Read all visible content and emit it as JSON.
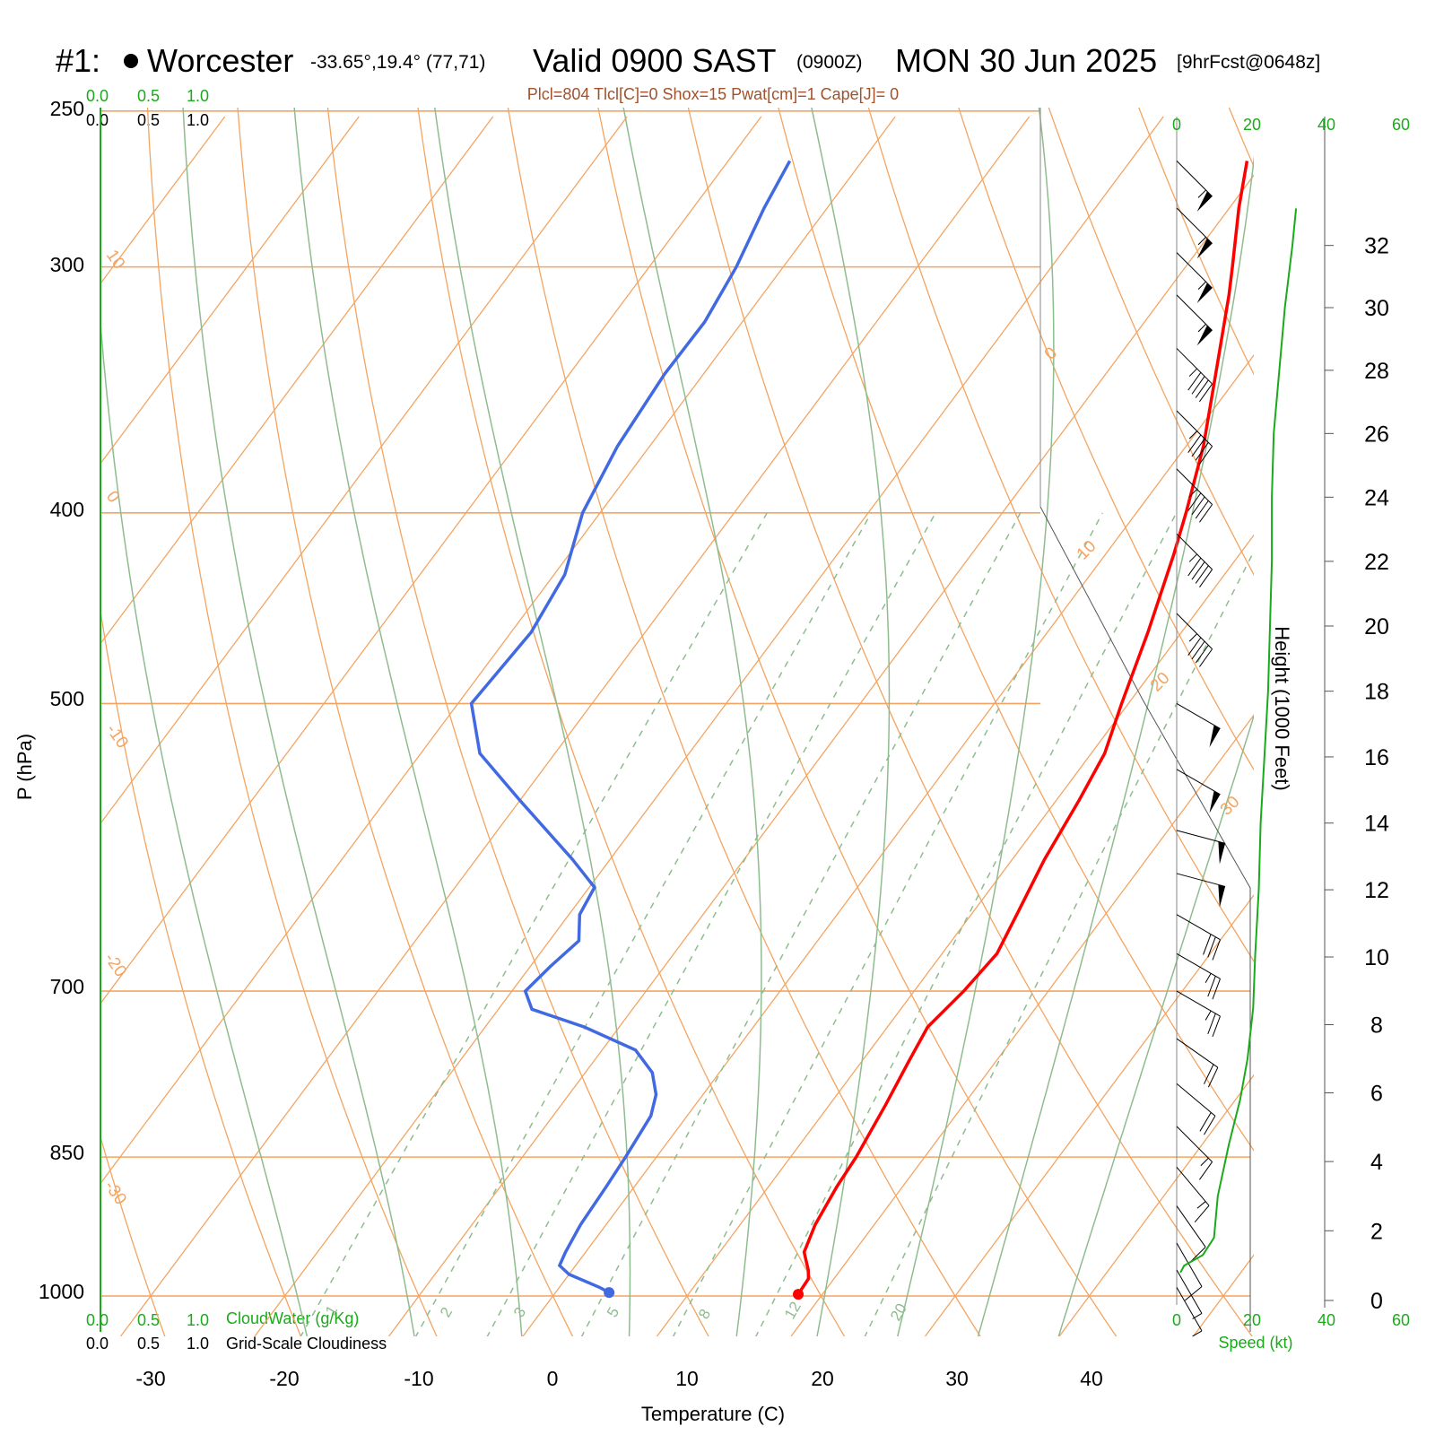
{
  "header": {
    "station_id": "#1:",
    "station_name": "Worcester",
    "coords": "-33.65°,19.4° (77,71)",
    "valid": "Valid 0900 SAST",
    "zulu": "(0900Z)",
    "date": "MON 30 Jun 2025",
    "forecast": "[9hrFcst@0648z]",
    "indices": "Plcl=804 Tlcl[C]=0 Shox=15 Pwat[cm]=1 Cape[J]= 0"
  },
  "axes": {
    "ylabel": "P (hPa)",
    "xlabel": "Temperature (C)",
    "height_label": "Height (1000 Feet)",
    "speed_label": "Speed (kt)",
    "cloudwater_label": "CloudWater (g/Kg)",
    "cloudiness_label": "Grid-Scale Cloudiness",
    "cloud_ticks": [
      "0.0",
      "0.5",
      "1.0"
    ]
  },
  "colors": {
    "temperature": "#ff0000",
    "dewpoint": "#4169e1",
    "isotherm": "#f4a460",
    "dry_adiabat": "#f4a460",
    "moist_adiabat": "#8fbc8f",
    "mixing_ratio": "#8fbc8f",
    "wind_speed": "#1aaa1a"
  },
  "chart_data": {
    "type": "line",
    "title": "Skew-T log-P sounding",
    "x_ticks": [
      "-30",
      "-20",
      "-10",
      "0",
      "10",
      "20",
      "30",
      "40"
    ],
    "pressure_ticks": [
      "250",
      "300",
      "400",
      "500",
      "700",
      "850",
      "1000"
    ],
    "ylim_hpa": [
      1000,
      250
    ],
    "height_ticks_kft": [
      "0",
      "2",
      "4",
      "6",
      "8",
      "10",
      "12",
      "14",
      "16",
      "18",
      "20",
      "22",
      "24",
      "26",
      "28",
      "30",
      "32"
    ],
    "speed_ticks_kt": [
      "0",
      "20",
      "40",
      "60"
    ],
    "isotherm_labels": [
      "10",
      "0",
      "-10",
      "-20",
      "-30",
      "0",
      "10",
      "20",
      "30"
    ],
    "mixing_ratio_labels": [
      "1",
      "2",
      "3",
      "5",
      "8",
      "12",
      "20"
    ],
    "series": [
      {
        "name": "Temperature",
        "points": [
          [
            998,
            18.2
          ],
          [
            980,
            18.1
          ],
          [
            970,
            17.6
          ],
          [
            950,
            16.3
          ],
          [
            920,
            15.6
          ],
          [
            880,
            15.1
          ],
          [
            850,
            14.9
          ],
          [
            800,
            14.2
          ],
          [
            760,
            13.5
          ],
          [
            730,
            13.0
          ],
          [
            700,
            13.7
          ],
          [
            670,
            14.1
          ],
          [
            640,
            13.4
          ],
          [
            600,
            12.4
          ],
          [
            560,
            11.7
          ],
          [
            530,
            11.0
          ],
          [
            500,
            9.5
          ],
          [
            460,
            7.5
          ],
          [
            420,
            5.1
          ],
          [
            400,
            3.7
          ],
          [
            370,
            1.3
          ],
          [
            340,
            -1.8
          ],
          [
            310,
            -5.2
          ],
          [
            300,
            -6.5
          ],
          [
            280,
            -9.3
          ],
          [
            265,
            -11.3
          ]
        ]
      },
      {
        "name": "Dewpoint",
        "points": [
          [
            996,
            4.0
          ],
          [
            990,
            3.0
          ],
          [
            975,
            0.0
          ],
          [
            965,
            -1.2
          ],
          [
            950,
            -1.5
          ],
          [
            920,
            -1.9
          ],
          [
            880,
            -2.1
          ],
          [
            850,
            -2.3
          ],
          [
            810,
            -2.7
          ],
          [
            790,
            -3.5
          ],
          [
            770,
            -5.0
          ],
          [
            750,
            -7.5
          ],
          [
            730,
            -12.6
          ],
          [
            715,
            -17.5
          ],
          [
            700,
            -19.0
          ],
          [
            680,
            -18.5
          ],
          [
            660,
            -17.8
          ],
          [
            640,
            -19.2
          ],
          [
            620,
            -19.6
          ],
          [
            600,
            -22.8
          ],
          [
            560,
            -30.0
          ],
          [
            530,
            -35.6
          ],
          [
            500,
            -39.0
          ],
          [
            460,
            -38.5
          ],
          [
            430,
            -39.2
          ],
          [
            400,
            -41.3
          ],
          [
            370,
            -42.4
          ],
          [
            340,
            -42.9
          ],
          [
            320,
            -42.8
          ],
          [
            300,
            -43.5
          ],
          [
            280,
            -44.7
          ],
          [
            265,
            -45.4
          ]
        ]
      }
    ],
    "wind_speed_profile": {
      "name": "Wind speed (kt) vs height (1000 ft)",
      "points": [
        [
          0.8,
          1
        ],
        [
          1.0,
          2
        ],
        [
          1.3,
          7
        ],
        [
          1.8,
          10
        ],
        [
          3.0,
          11
        ],
        [
          4.5,
          14
        ],
        [
          5.8,
          17
        ],
        [
          7.0,
          19
        ],
        [
          8.5,
          20.5
        ],
        [
          10.0,
          21
        ],
        [
          12.0,
          22
        ],
        [
          14.0,
          22.5
        ],
        [
          16.0,
          23.5
        ],
        [
          18.0,
          24.5
        ],
        [
          20.0,
          25
        ],
        [
          22.0,
          25.5
        ],
        [
          24.0,
          25.5
        ],
        [
          26.0,
          26
        ],
        [
          28.0,
          27.5
        ],
        [
          30.0,
          29
        ],
        [
          32.0,
          31
        ],
        [
          33.2,
          32
        ]
      ]
    },
    "wind_barbs": [
      {
        "p": 265,
        "dir": 315,
        "spd": 55
      },
      {
        "p": 280,
        "dir": 315,
        "spd": 55
      },
      {
        "p": 295,
        "dir": 315,
        "spd": 55
      },
      {
        "p": 310,
        "dir": 315,
        "spd": 55
      },
      {
        "p": 330,
        "dir": 315,
        "spd": 45
      },
      {
        "p": 355,
        "dir": 315,
        "spd": 45
      },
      {
        "p": 380,
        "dir": 315,
        "spd": 45
      },
      {
        "p": 410,
        "dir": 315,
        "spd": 45
      },
      {
        "p": 450,
        "dir": 315,
        "spd": 45
      },
      {
        "p": 500,
        "dir": 300,
        "spd": 50
      },
      {
        "p": 540,
        "dir": 300,
        "spd": 50
      },
      {
        "p": 580,
        "dir": 285,
        "spd": 50
      },
      {
        "p": 610,
        "dir": 285,
        "spd": 50
      },
      {
        "p": 640,
        "dir": 300,
        "spd": 30
      },
      {
        "p": 670,
        "dir": 300,
        "spd": 25
      },
      {
        "p": 700,
        "dir": 300,
        "spd": 25
      },
      {
        "p": 740,
        "dir": 305,
        "spd": 20
      },
      {
        "p": 780,
        "dir": 310,
        "spd": 20
      },
      {
        "p": 820,
        "dir": 315,
        "spd": 15
      },
      {
        "p": 860,
        "dir": 320,
        "spd": 15
      },
      {
        "p": 900,
        "dir": 325,
        "spd": 10
      },
      {
        "p": 940,
        "dir": 330,
        "spd": 10
      },
      {
        "p": 970,
        "dir": 330,
        "spd": 5
      },
      {
        "p": 990,
        "dir": 330,
        "spd": 5
      }
    ]
  }
}
